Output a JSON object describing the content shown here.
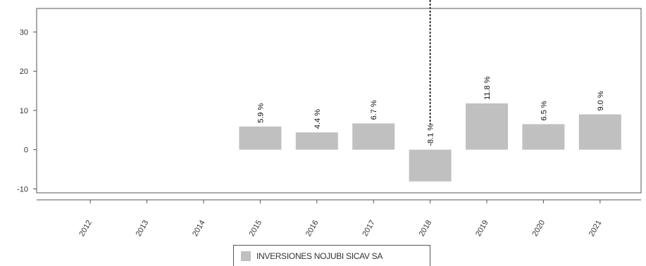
{
  "chart_data": {
    "type": "bar",
    "categories": [
      "2012",
      "2013",
      "2014",
      "2015",
      "2016",
      "2017",
      "2018",
      "2019",
      "2020",
      "2021"
    ],
    "series": [
      {
        "name": "INVERSIONES NOJUBI SICAV SA",
        "values": [
          null,
          null,
          null,
          5.9,
          4.4,
          6.7,
          -8.1,
          11.8,
          6.5,
          9.0
        ],
        "labels": [
          "",
          "",
          "",
          "5.9 %",
          "4.4 %",
          "6.7 %",
          "-8.1 %",
          "11.8 %",
          "6.5 %",
          "9.0 %"
        ]
      }
    ],
    "ylim": [
      -11,
      36
    ],
    "yticks": [
      -10,
      0,
      10,
      20,
      30
    ],
    "grid": false,
    "legend_position": "bottom",
    "marker_category": "2018",
    "colors": {
      "bar": "#c0c0c0",
      "axis": "#555555",
      "marker": "#000000"
    }
  }
}
